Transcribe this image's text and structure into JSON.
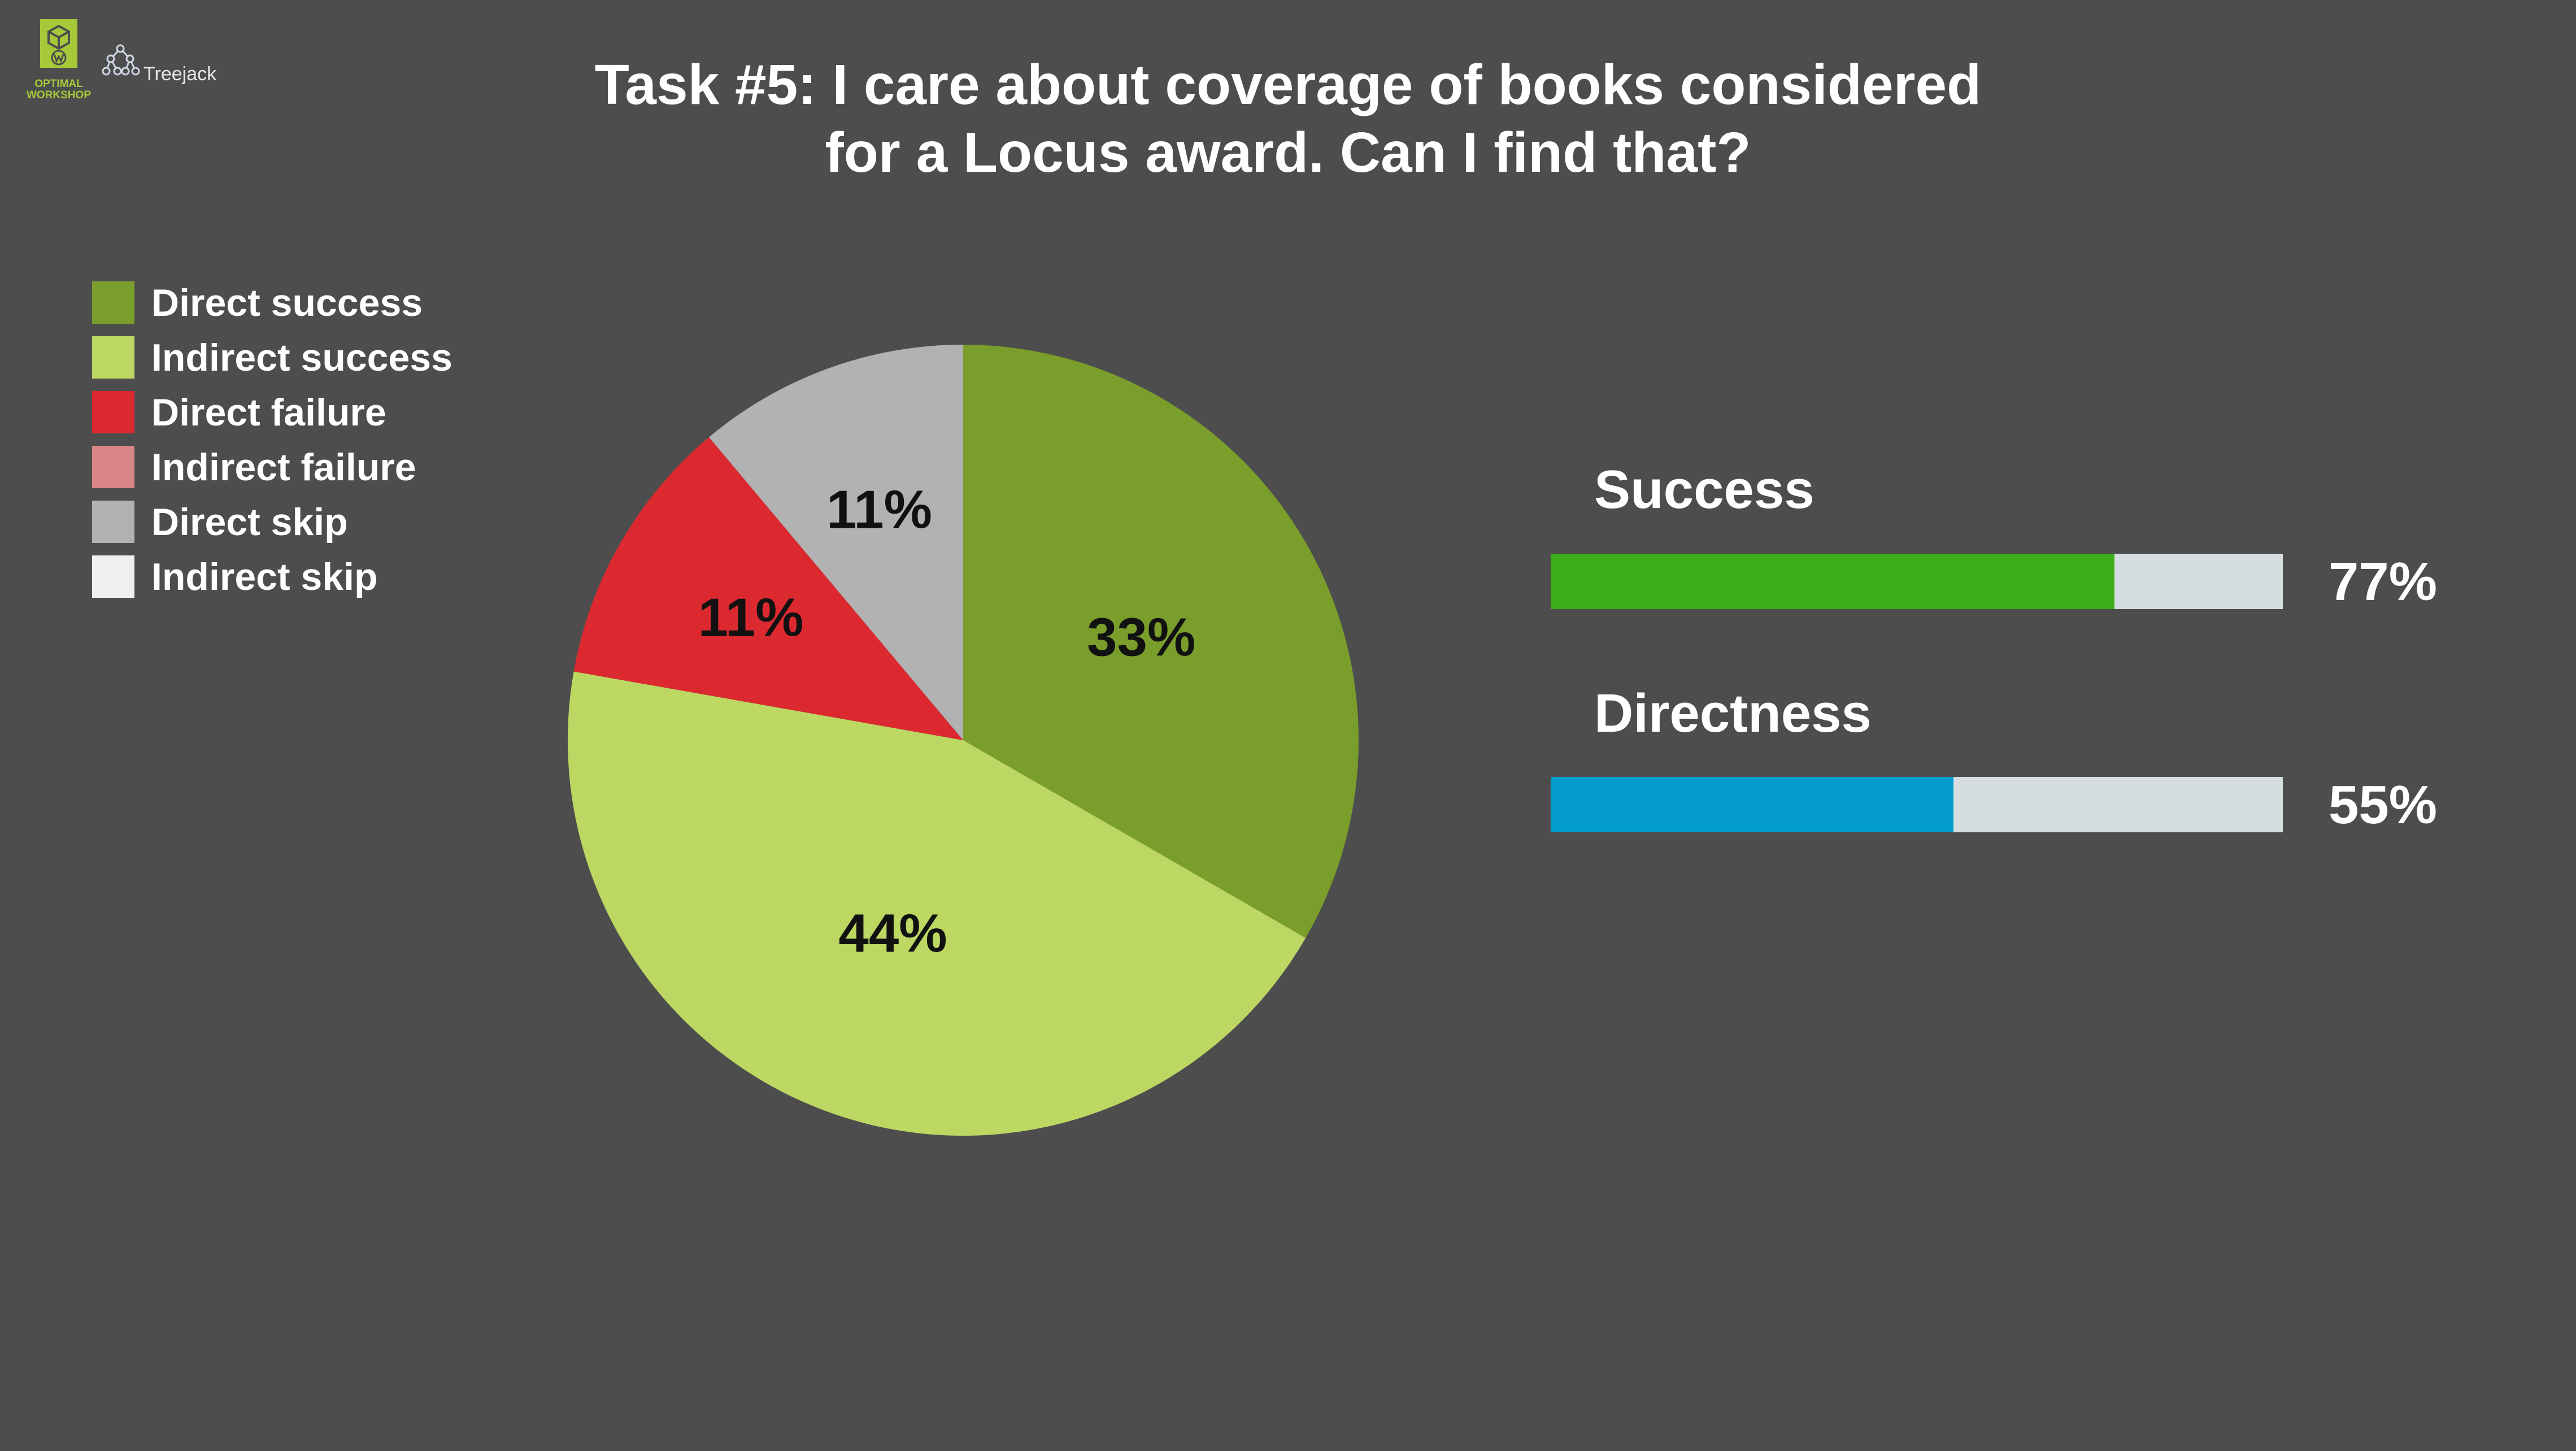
{
  "branding": {
    "company_lines": [
      "OPTIMAL",
      "WORKSHOP"
    ],
    "company_icon": "optimal-workshop-logo-icon",
    "product": "Treejack",
    "product_icon": "treejack-icon"
  },
  "title_lines": [
    "Task #5: I care about coverage of books considered",
    "for a Locus award. Can I find that?"
  ],
  "legend": [
    {
      "label": "Direct success",
      "color": "#7a9e2b"
    },
    {
      "label": "Indirect success",
      "color": "#bcd762"
    },
    {
      "label": "Direct failure",
      "color": "#dc2930"
    },
    {
      "label": "Indirect failure",
      "color": "#d98689"
    },
    {
      "label": "Direct skip",
      "color": "#b2b2b2"
    },
    {
      "label": "Indirect skip",
      "color": "#f0f0f0"
    }
  ],
  "chart_data": {
    "type": "pie",
    "title": "Task #5: I care about coverage of books considered for a Locus award. Can I find that?",
    "legend_position": "left",
    "slices": [
      {
        "category": "Direct success",
        "value": 33,
        "label": "33%",
        "color": "#7a9e2b"
      },
      {
        "category": "Indirect success",
        "value": 44,
        "label": "44%",
        "color": "#bcd762"
      },
      {
        "category": "Direct failure",
        "value": 11,
        "label": "11%",
        "color": "#dc2930"
      },
      {
        "category": "Indirect failure",
        "value": 0,
        "label": "",
        "color": "#d98689"
      },
      {
        "category": "Direct skip",
        "value": 11,
        "label": "11%",
        "color": "#b2b2b2"
      },
      {
        "category": "Indirect skip",
        "value": 0,
        "label": "",
        "color": "#f0f0f0"
      }
    ]
  },
  "metrics": [
    {
      "label": "Success",
      "value": 77,
      "value_label": "77%",
      "color": "#3dad1b",
      "track_color": "#d5dde0"
    },
    {
      "label": "Directness",
      "value": 55,
      "value_label": "55%",
      "color": "#029bcc",
      "track_color": "#d5dde0"
    }
  ]
}
